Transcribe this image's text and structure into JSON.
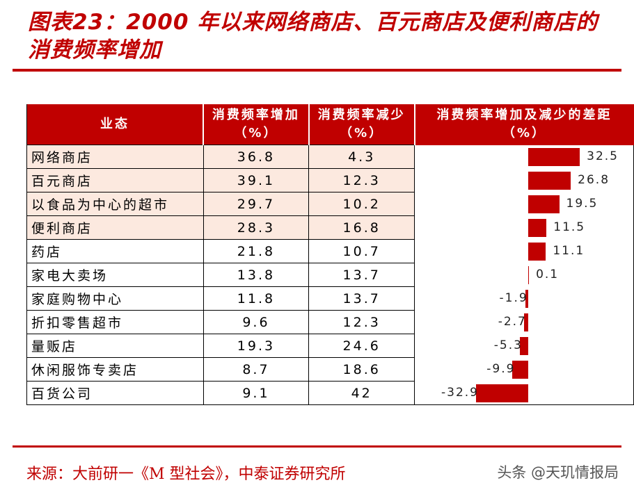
{
  "header": {
    "title": "图表23：2000 年以来网络商店、百元商店及便利商店的消费频率增加"
  },
  "table": {
    "columns": [
      "业态",
      "消费频率增加（%）",
      "消费频率减少（%）",
      "消费频率增加及减少的差距（%）"
    ],
    "rows": [
      [
        "网络商店",
        36.8,
        4.3,
        32.5
      ],
      [
        "百元商店",
        39.1,
        12.3,
        26.8
      ],
      [
        "以食品为中心的超市",
        29.7,
        10.2,
        19.5
      ],
      [
        "便利商店",
        28.3,
        16.8,
        11.5
      ],
      [
        "药店",
        21.8,
        10.7,
        11.1
      ],
      [
        "家电大卖场",
        13.8,
        13.7,
        0.1
      ],
      [
        "家庭购物中心",
        11.8,
        13.7,
        -1.9
      ],
      [
        "折扣零售超市",
        9.6,
        12.3,
        -2.7
      ],
      [
        "量贩店",
        19.3,
        24.6,
        -5.3
      ],
      [
        "休闲服饰专卖店",
        8.7,
        18.6,
        -9.9
      ],
      [
        "百货公司",
        9.1,
        42,
        -32.9
      ]
    ],
    "highlight_rows": 4,
    "bar_color": "#c00000"
  },
  "footer": {
    "source": "来源：大前研一《M 型社会》，中泰证券研究所",
    "watermark": "头条 @天玑情报局"
  }
}
